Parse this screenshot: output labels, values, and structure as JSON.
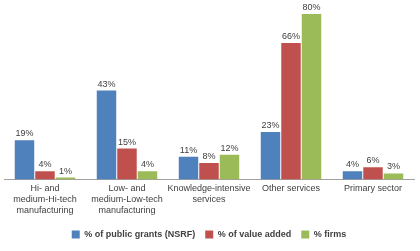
{
  "chart_data": {
    "type": "bar",
    "categories": [
      "Hi- and medium-Hi-tech manufacturing",
      "Low- and medium-Low-tech manufacturing",
      "Knowledge-intensive services",
      "Other services",
      "Primary sector"
    ],
    "series": [
      {
        "name": "% of public grants (NSRF)",
        "color": "#4f81bd",
        "values": [
          19,
          43,
          11,
          23,
          4
        ],
        "value_labels": [
          "19%",
          "43%",
          "11%",
          "23%",
          "4%"
        ]
      },
      {
        "name": "% of value added",
        "color": "#c0504d",
        "values": [
          4,
          15,
          8,
          66,
          6
        ],
        "value_labels": [
          "4%",
          "15%",
          "8%",
          "66%",
          "6%"
        ]
      },
      {
        "name": "% firms",
        "color": "#9bbb59",
        "values": [
          1,
          4,
          12,
          80,
          3
        ],
        "value_labels": [
          "1%",
          "4%",
          "12%",
          "80%",
          "3%"
        ]
      }
    ],
    "ylim": [
      0,
      80
    ],
    "grid": false,
    "legend": "bottom",
    "data_labels": true,
    "tick_labels": "x"
  }
}
